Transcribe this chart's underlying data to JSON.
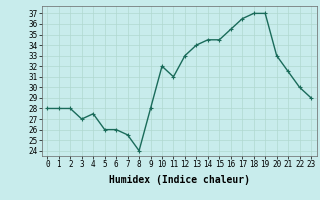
{
  "x": [
    0,
    1,
    2,
    3,
    4,
    5,
    6,
    7,
    8,
    9,
    10,
    11,
    12,
    13,
    14,
    15,
    16,
    17,
    18,
    19,
    20,
    21,
    22,
    23
  ],
  "y": [
    28,
    28,
    28,
    27,
    27.5,
    26,
    26,
    25.5,
    24,
    28,
    32,
    31,
    33,
    34,
    34.5,
    34.5,
    35.5,
    36.5,
    37,
    37,
    33,
    31.5,
    30,
    29
  ],
  "line_color": "#1a6b5a",
  "marker": "+",
  "marker_color": "#1a6b5a",
  "bg_color": "#c8ecec",
  "grid_color": "#b0d8d0",
  "xlabel": "Humidex (Indice chaleur)",
  "xlabel_fontsize": 7,
  "ytick_labels": [
    "24",
    "25",
    "26",
    "27",
    "28",
    "29",
    "30",
    "31",
    "32",
    "33",
    "34",
    "35",
    "36",
    "37"
  ],
  "ytick_vals": [
    24,
    25,
    26,
    27,
    28,
    29,
    30,
    31,
    32,
    33,
    34,
    35,
    36,
    37
  ],
  "xtick_labels": [
    "0",
    "1",
    "2",
    "3",
    "4",
    "5",
    "6",
    "7",
    "8",
    "9",
    "10",
    "11",
    "12",
    "13",
    "14",
    "15",
    "16",
    "17",
    "18",
    "19",
    "20",
    "21",
    "22",
    "23"
  ],
  "ylim": [
    23.5,
    37.7
  ],
  "xlim": [
    -0.5,
    23.5
  ],
  "tick_fontsize": 5.5,
  "linewidth": 1.0,
  "markersize": 3
}
